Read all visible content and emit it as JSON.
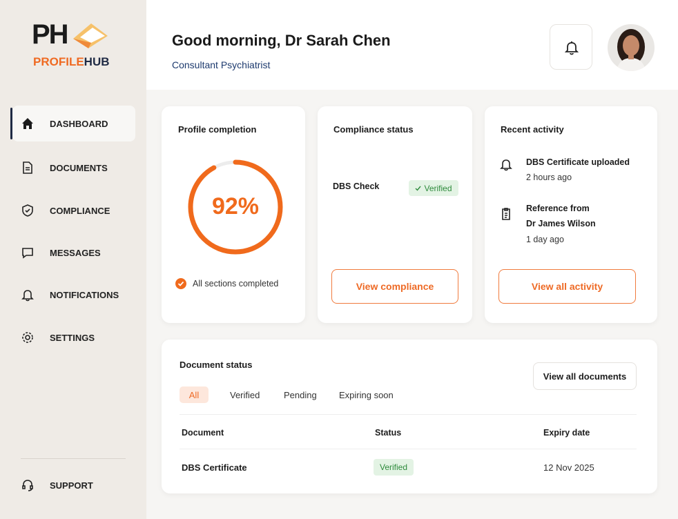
{
  "sidebar": {
    "logo": {
      "mark": "PH",
      "word_1": "PROFILE",
      "word_2": "HUB"
    },
    "nav": [
      "DASHBOARD",
      "DOCUMENTS",
      "COMPLIANCE",
      "MESSAGES",
      "NOTIFICATIONS",
      "SETTINGS"
    ],
    "support": "SUPPORT"
  },
  "header": {
    "greeting": "Good morning, Dr Sarah Chen",
    "role": "Consultant Psychiatrist"
  },
  "profile_card": {
    "title": "Profile completion",
    "completion": {
      "value": 92,
      "label": "92%"
    },
    "note": "All sections completed"
  },
  "compliance_card": {
    "title": "Compliance status",
    "item": "DBS Check",
    "status": "Verified",
    "button": "View compliance"
  },
  "activity_card": {
    "title": "Recent activity",
    "items": [
      {
        "lines": [
          "DBS Certificate uploaded"
        ],
        "time": "2 hours ago"
      },
      {
        "lines": [
          "Reference from",
          "Dr James Wilson"
        ],
        "time": "1 day ago"
      }
    ],
    "button": "View all activity"
  },
  "documents_card": {
    "title": "Document status",
    "button": "View all documents",
    "tabs": [
      "All",
      "Verified",
      "Pending",
      "Expiring soon"
    ],
    "table": {
      "columns": [
        "Document",
        "Status",
        "Expiry date"
      ],
      "rows": [
        [
          "DBS Certificate",
          "Verified",
          "12 Nov 2025"
        ]
      ]
    }
  }
}
